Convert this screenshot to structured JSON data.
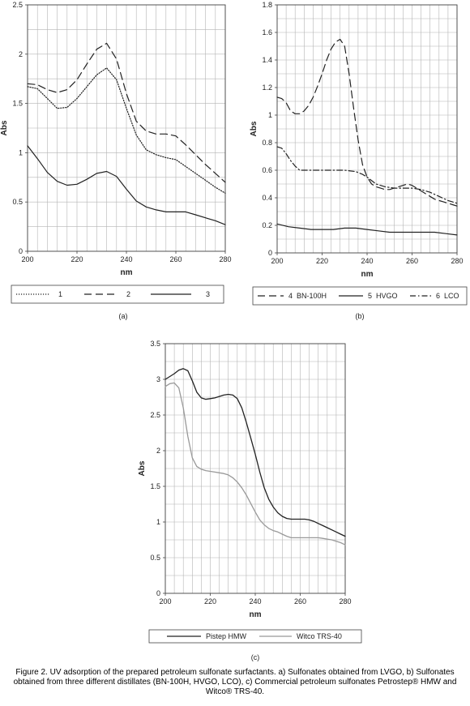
{
  "caption": "Figure 2. UV adsorption of the prepared petroleum sulfonate surfactants. a) Sulfonates obtained from LVGO, b) Sulfonates obtained from three different distillates (BN-100H, HVGO, LCO), c) Commercial petroleum sulfonates Petrostep® HMW and Witco® TRS-40.",
  "chart_data": [
    {
      "type": "line",
      "panel_label": "(a)",
      "xlabel": "nm",
      "ylabel": "Abs",
      "xlim": [
        200,
        280
      ],
      "ylim": [
        0,
        2.5
      ],
      "x_ticks": [
        "200",
        "220",
        "240",
        "260",
        "280"
      ],
      "y_ticks": [
        "0",
        "0.5",
        "1",
        "1.5",
        "2",
        "2.5"
      ],
      "grid": true,
      "legend_position": "bottom",
      "series": [
        {
          "name": "1",
          "style": "dotted",
          "color": "#222222",
          "x": [
            200,
            204,
            208,
            212,
            216,
            220,
            224,
            228,
            232,
            236,
            240,
            244,
            248,
            252,
            256,
            260,
            264,
            268,
            272,
            276,
            280
          ],
          "y": [
            1.67,
            1.65,
            1.55,
            1.45,
            1.46,
            1.55,
            1.67,
            1.79,
            1.86,
            1.74,
            1.45,
            1.18,
            1.03,
            0.98,
            0.95,
            0.93,
            0.86,
            0.79,
            0.72,
            0.65,
            0.59
          ]
        },
        {
          "name": "2",
          "style": "dashed",
          "color": "#222222",
          "x": [
            200,
            204,
            208,
            212,
            216,
            220,
            224,
            228,
            232,
            236,
            240,
            244,
            248,
            252,
            256,
            260,
            264,
            268,
            272,
            276,
            280
          ],
          "y": [
            1.7,
            1.69,
            1.64,
            1.61,
            1.64,
            1.74,
            1.9,
            2.05,
            2.11,
            1.95,
            1.6,
            1.32,
            1.22,
            1.19,
            1.19,
            1.17,
            1.08,
            0.98,
            0.88,
            0.79,
            0.7
          ]
        },
        {
          "name": "3",
          "style": "solid",
          "color": "#222222",
          "x": [
            200,
            204,
            208,
            212,
            216,
            220,
            224,
            228,
            232,
            236,
            240,
            244,
            248,
            252,
            256,
            260,
            264,
            268,
            272,
            276,
            280
          ],
          "y": [
            1.07,
            0.94,
            0.8,
            0.71,
            0.67,
            0.68,
            0.73,
            0.79,
            0.81,
            0.76,
            0.63,
            0.51,
            0.45,
            0.42,
            0.4,
            0.4,
            0.4,
            0.37,
            0.34,
            0.31,
            0.27
          ]
        }
      ]
    },
    {
      "type": "line",
      "panel_label": "(b)",
      "xlabel": "nm",
      "ylabel": "Abs",
      "xlim": [
        200,
        280
      ],
      "ylim": [
        0,
        1.8
      ],
      "x_ticks": [
        "200",
        "220",
        "240",
        "260",
        "280"
      ],
      "y_ticks": [
        "0",
        "0.2",
        "0.4",
        "0.6",
        "0.8",
        "1",
        "1.2",
        "1.4",
        "1.6",
        "1.8"
      ],
      "grid": true,
      "legend_position": "bottom",
      "series": [
        {
          "name": "4",
          "legend_text": "BN-100H",
          "style": "dashed",
          "color": "#222222",
          "x": [
            200,
            202,
            204,
            206,
            208,
            210,
            212,
            214,
            216,
            218,
            220,
            222,
            224,
            226,
            228,
            230,
            232,
            234,
            236,
            238,
            240,
            242,
            244,
            246,
            248,
            250,
            252,
            254,
            256,
            258,
            260,
            262,
            264,
            266,
            268,
            270,
            272,
            274,
            276,
            278,
            280
          ],
          "y": [
            1.13,
            1.12,
            1.09,
            1.03,
            1.01,
            1.01,
            1.03,
            1.07,
            1.13,
            1.21,
            1.3,
            1.4,
            1.48,
            1.53,
            1.55,
            1.5,
            1.3,
            1.05,
            0.82,
            0.64,
            0.55,
            0.5,
            0.48,
            0.47,
            0.46,
            0.46,
            0.47,
            0.48,
            0.49,
            0.5,
            0.49,
            0.47,
            0.45,
            0.43,
            0.41,
            0.39,
            0.38,
            0.37,
            0.36,
            0.35,
            0.34
          ]
        },
        {
          "name": "5",
          "legend_text": "HVGO",
          "style": "solid",
          "color": "#222222",
          "x": [
            200,
            205,
            210,
            215,
            220,
            225,
            230,
            235,
            240,
            245,
            250,
            255,
            260,
            265,
            270,
            275,
            280
          ],
          "y": [
            0.21,
            0.19,
            0.18,
            0.17,
            0.17,
            0.17,
            0.18,
            0.18,
            0.17,
            0.16,
            0.15,
            0.15,
            0.15,
            0.15,
            0.15,
            0.14,
            0.13
          ]
        },
        {
          "name": "6",
          "legend_text": "LCO",
          "style": "dashdot",
          "color": "#222222",
          "x": [
            200,
            202,
            204,
            206,
            208,
            210,
            212,
            214,
            216,
            220,
            225,
            230,
            235,
            238,
            240,
            244,
            248,
            252,
            256,
            260,
            264,
            268,
            272,
            276,
            280
          ],
          "y": [
            0.77,
            0.76,
            0.72,
            0.67,
            0.63,
            0.6,
            0.6,
            0.6,
            0.6,
            0.6,
            0.6,
            0.6,
            0.59,
            0.57,
            0.55,
            0.5,
            0.48,
            0.47,
            0.47,
            0.47,
            0.46,
            0.44,
            0.41,
            0.38,
            0.36
          ]
        }
      ]
    },
    {
      "type": "line",
      "panel_label": "(c)",
      "xlabel": "nm",
      "ylabel": "Abs",
      "xlim": [
        200,
        280
      ],
      "ylim": [
        0,
        3.5
      ],
      "x_ticks": [
        "200",
        "220",
        "240",
        "260",
        "280"
      ],
      "y_ticks": [
        "0",
        "0.5",
        "1",
        "1.5",
        "2",
        "2.5",
        "3",
        "3.5"
      ],
      "grid": true,
      "legend_position": "bottom",
      "series": [
        {
          "name": "Pistep HMW",
          "style": "solid",
          "color": "#222222",
          "x": [
            200,
            202,
            204,
            206,
            208,
            210,
            212,
            214,
            216,
            218,
            220,
            222,
            224,
            226,
            228,
            230,
            232,
            234,
            236,
            238,
            240,
            242,
            244,
            246,
            248,
            250,
            252,
            254,
            256,
            258,
            260,
            262,
            264,
            266,
            268,
            270,
            272,
            274,
            276,
            278,
            280
          ],
          "y": [
            3.0,
            3.04,
            3.08,
            3.13,
            3.15,
            3.12,
            2.98,
            2.82,
            2.74,
            2.72,
            2.73,
            2.74,
            2.76,
            2.78,
            2.79,
            2.78,
            2.73,
            2.6,
            2.4,
            2.18,
            1.95,
            1.7,
            1.48,
            1.32,
            1.21,
            1.13,
            1.08,
            1.05,
            1.04,
            1.04,
            1.04,
            1.04,
            1.03,
            1.01,
            0.98,
            0.95,
            0.92,
            0.89,
            0.86,
            0.83,
            0.8
          ]
        },
        {
          "name": "Witco TRS-40",
          "style": "solid",
          "color": "#999999",
          "x": [
            200,
            202,
            204,
            206,
            208,
            210,
            212,
            214,
            216,
            218,
            220,
            222,
            224,
            226,
            228,
            230,
            232,
            234,
            236,
            238,
            240,
            242,
            244,
            246,
            248,
            250,
            252,
            254,
            256,
            258,
            260,
            262,
            264,
            266,
            268,
            270,
            272,
            274,
            276,
            278,
            280
          ],
          "y": [
            2.9,
            2.94,
            2.95,
            2.88,
            2.6,
            2.2,
            1.9,
            1.78,
            1.74,
            1.72,
            1.71,
            1.7,
            1.69,
            1.68,
            1.66,
            1.62,
            1.56,
            1.48,
            1.38,
            1.26,
            1.14,
            1.03,
            0.96,
            0.91,
            0.88,
            0.86,
            0.83,
            0.8,
            0.78,
            0.78,
            0.78,
            0.78,
            0.78,
            0.78,
            0.78,
            0.77,
            0.76,
            0.75,
            0.73,
            0.71,
            0.68
          ]
        }
      ]
    }
  ]
}
